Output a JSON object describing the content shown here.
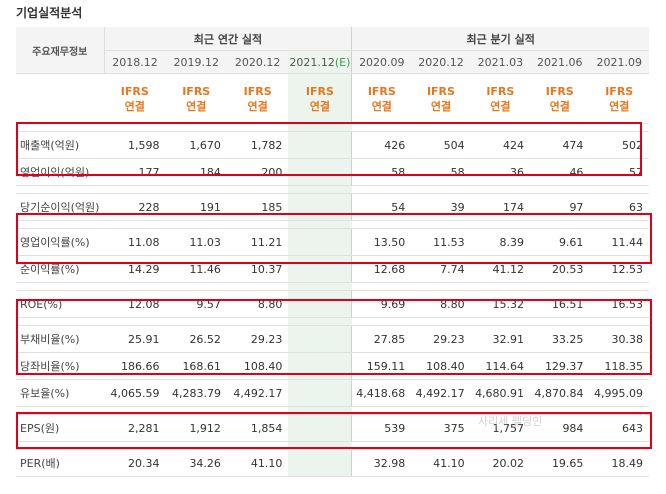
{
  "title": "기업실적분석",
  "header": {
    "label": "주요재무정보",
    "annual_title": "최근 연간 실적",
    "quarter_title": "최근 분기 실적"
  },
  "annual_periods": [
    "2018.12",
    "2019.12",
    "2020.12",
    "2021.12"
  ],
  "forecast_mark": "(E)",
  "quarter_periods": [
    "2020.09",
    "2020.12",
    "2021.03",
    "2021.06",
    "2021.09"
  ],
  "ifrs": {
    "line1": "IFRS",
    "line2": "연결"
  },
  "rows": [
    {
      "label": "매출액(억원)",
      "annual": [
        "1,598",
        "1,670",
        "1,782",
        ""
      ],
      "quarter": [
        "426",
        "504",
        "424",
        "474",
        "502"
      ]
    },
    {
      "label": "영업이익(억원)",
      "annual": [
        "177",
        "184",
        "200",
        ""
      ],
      "quarter": [
        "58",
        "58",
        "36",
        "46",
        "57"
      ]
    },
    {
      "label": "당기순이익(억원)",
      "annual": [
        "228",
        "191",
        "185",
        ""
      ],
      "quarter": [
        "54",
        "39",
        "174",
        "97",
        "63"
      ]
    },
    {
      "label": "영업이익률(%)",
      "annual": [
        "11.08",
        "11.03",
        "11.21",
        ""
      ],
      "quarter": [
        "13.50",
        "11.53",
        "8.39",
        "9.61",
        "11.44"
      ]
    },
    {
      "label": "순이익률(%)",
      "annual": [
        "14.29",
        "11.46",
        "10.37",
        ""
      ],
      "quarter": [
        "12.68",
        "7.74",
        "41.12",
        "20.53",
        "12.53"
      ]
    },
    {
      "label": "ROE(%)",
      "annual": [
        "12.08",
        "9.57",
        "8.80",
        ""
      ],
      "quarter": [
        "9.69",
        "8.80",
        "15.32",
        "16.51",
        "16.53"
      ]
    },
    {
      "label": "부채비율(%)",
      "annual": [
        "25.91",
        "26.52",
        "29.23",
        ""
      ],
      "quarter": [
        "27.85",
        "29.23",
        "32.91",
        "33.25",
        "30.38"
      ]
    },
    {
      "label": "당좌비율(%)",
      "annual": [
        "186.66",
        "168.61",
        "108.40",
        ""
      ],
      "quarter": [
        "159.11",
        "108.40",
        "114.64",
        "129.37",
        "118.35"
      ]
    },
    {
      "label": "유보율(%)",
      "annual": [
        "4,065.59",
        "4,283.79",
        "4,492.17",
        ""
      ],
      "quarter": [
        "4,418.68",
        "4,492.17",
        "4,680.91",
        "4,870.84",
        "4,995.09"
      ]
    },
    {
      "label": "EPS(원)",
      "annual": [
        "2,281",
        "1,912",
        "1,854",
        ""
      ],
      "quarter": [
        "539",
        "375",
        "1,757",
        "984",
        "643"
      ]
    },
    {
      "label": "PER(배)",
      "annual": [
        "20.34",
        "34.26",
        "41.10",
        ""
      ],
      "quarter": [
        "32.98",
        "41.10",
        "20.02",
        "19.65",
        "18.49"
      ]
    }
  ],
  "watermark": "사리세 펠딩인",
  "colors": {
    "highlight_box": "#e0001a",
    "ifrs_text": "#e3781e",
    "forecast_bg": "#ebf5ee",
    "forecast_mark": "#3a9a52"
  }
}
